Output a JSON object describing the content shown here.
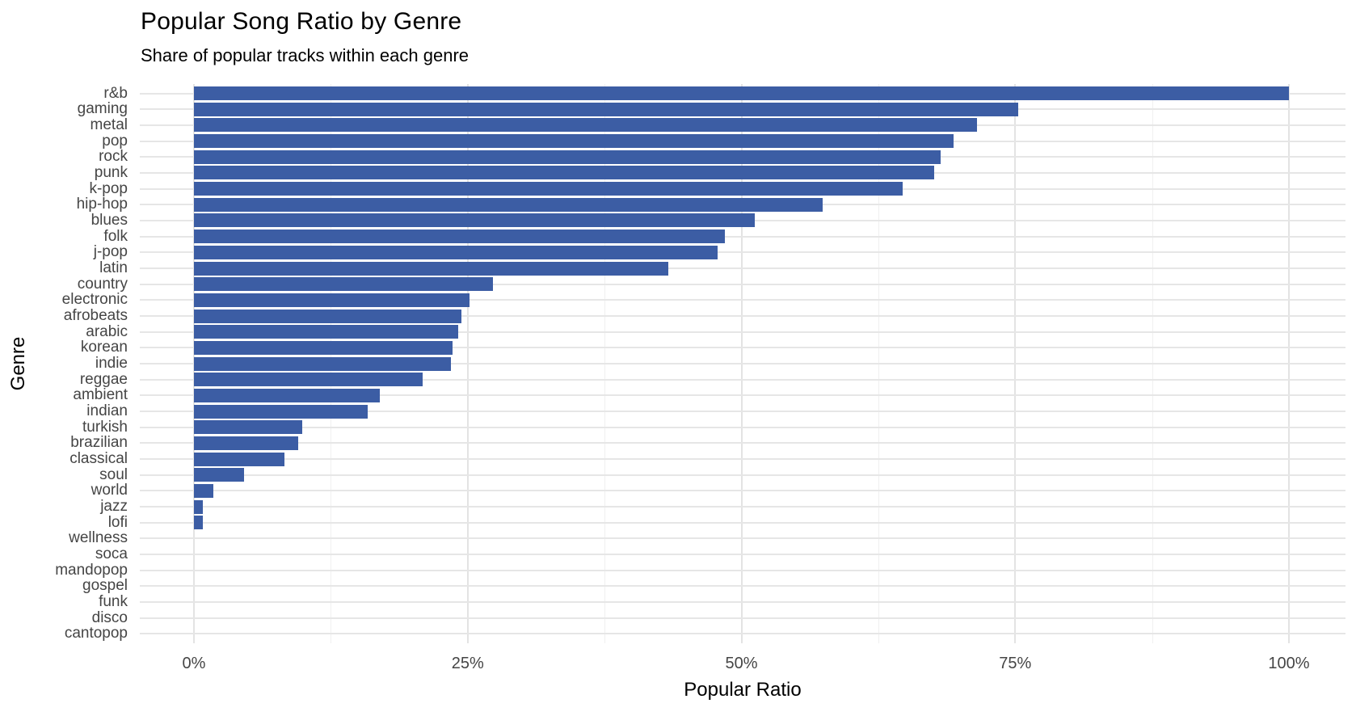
{
  "chart_data": {
    "type": "bar",
    "orientation": "horizontal",
    "title": "Popular Song Ratio by Genre",
    "subtitle": "Share of popular tracks within each genre",
    "xlabel": "Popular Ratio",
    "ylabel": "Genre",
    "bar_color": "#3c5da4",
    "xlim": [
      0,
      100
    ],
    "x_tick_values": [
      0,
      25,
      50,
      75,
      100
    ],
    "x_tick_labels": [
      "0%",
      "25%",
      "50%",
      "75%",
      "100%"
    ],
    "x_minor_tick_values": [
      12.5,
      37.5,
      62.5,
      87.5
    ],
    "grid": "major-and-minor",
    "legend": "none",
    "categories": [
      "r&b",
      "gaming",
      "metal",
      "pop",
      "rock",
      "punk",
      "k-pop",
      "hip-hop",
      "blues",
      "folk",
      "j-pop",
      "latin",
      "country",
      "electronic",
      "afrobeats",
      "arabic",
      "korean",
      "indie",
      "reggae",
      "ambient",
      "indian",
      "turkish",
      "brazilian",
      "classical",
      "soul",
      "world",
      "jazz",
      "lofi",
      "wellness",
      "soca",
      "mandopop",
      "gospel",
      "funk",
      "disco",
      "cantopop"
    ],
    "values": [
      100,
      75.3,
      71.5,
      69.4,
      68.2,
      67.6,
      64.7,
      57.4,
      51.2,
      48.5,
      47.8,
      43.3,
      27.3,
      25.2,
      24.4,
      24.1,
      23.6,
      23.5,
      20.9,
      17.0,
      15.9,
      9.9,
      9.5,
      8.3,
      4.6,
      1.8,
      0.8,
      0.8,
      0,
      0,
      0,
      0,
      0,
      0,
      0
    ]
  }
}
